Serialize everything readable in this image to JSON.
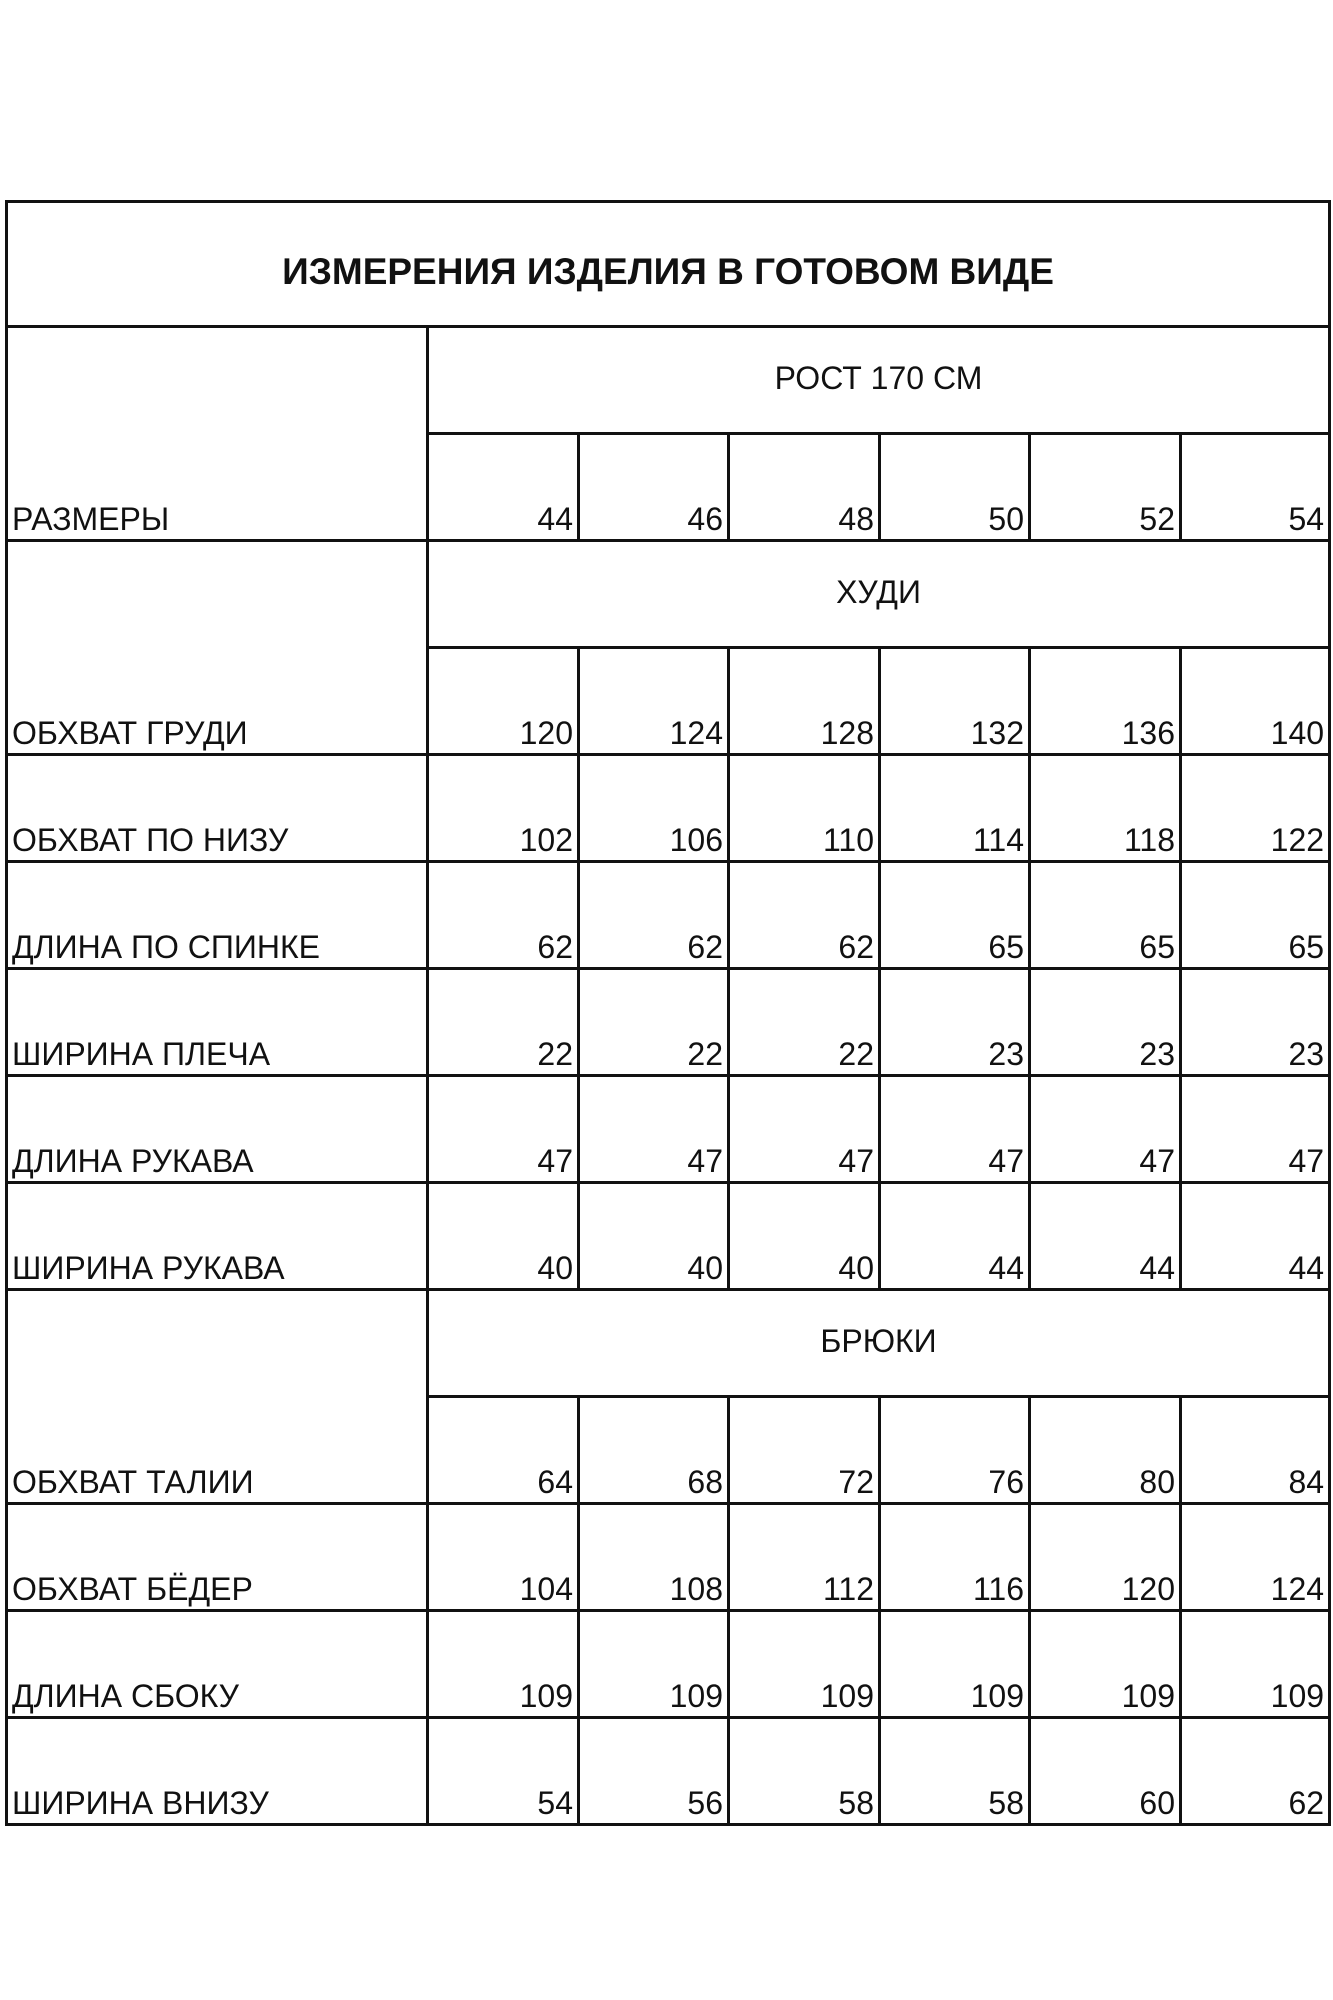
{
  "title": "ИЗМЕРЕНИЯ ИЗДЕЛИЯ В ГОТОВОМ ВИДЕ",
  "height_label": "РОСТ 170 СМ",
  "sizes_label": "РАЗМЕРЫ",
  "sizes": [
    "44",
    "46",
    "48",
    "50",
    "52",
    "54"
  ],
  "sections": [
    {
      "name": "ХУДИ",
      "rows": [
        {
          "label": "ОБХВАТ ГРУДИ",
          "values": [
            "120",
            "124",
            "128",
            "132",
            "136",
            "140"
          ]
        },
        {
          "label": "ОБХВАТ ПО НИЗУ",
          "values": [
            "102",
            "106",
            "110",
            "114",
            "118",
            "122"
          ]
        },
        {
          "label": "ДЛИНА ПО СПИНКЕ",
          "values": [
            "62",
            "62",
            "62",
            "65",
            "65",
            "65"
          ]
        },
        {
          "label": "ШИРИНА ПЛЕЧА",
          "values": [
            "22",
            "22",
            "22",
            "23",
            "23",
            "23"
          ]
        },
        {
          "label": "ДЛИНА РУКАВА",
          "values": [
            "47",
            "47",
            "47",
            "47",
            "47",
            "47"
          ]
        },
        {
          "label": "ШИРИНА РУКАВА",
          "values": [
            "40",
            "40",
            "40",
            "44",
            "44",
            "44"
          ]
        }
      ]
    },
    {
      "name": "БРЮКИ",
      "rows": [
        {
          "label": "ОБХВАТ ТАЛИИ",
          "values": [
            "64",
            "68",
            "72",
            "76",
            "80",
            "84"
          ]
        },
        {
          "label": "ОБХВАТ БЁДЕР",
          "values": [
            "104",
            "108",
            "112",
            "116",
            "120",
            "124"
          ]
        },
        {
          "label": "ДЛИНА СБОКУ",
          "values": [
            "109",
            "109",
            "109",
            "109",
            "109",
            "109"
          ]
        },
        {
          "label": "ШИРИНА ВНИЗУ",
          "values": [
            "54",
            "56",
            "58",
            "58",
            "60",
            "62"
          ]
        }
      ]
    }
  ]
}
